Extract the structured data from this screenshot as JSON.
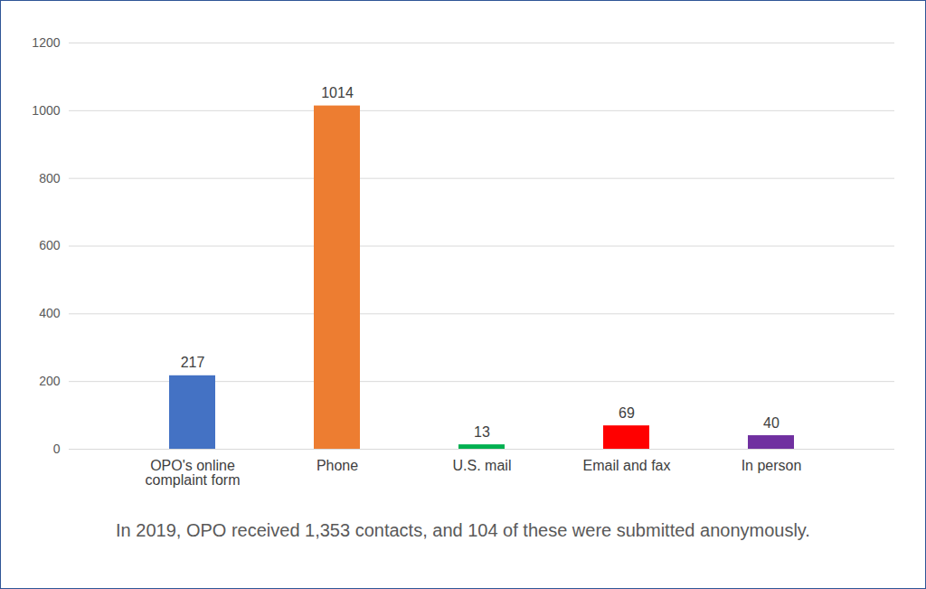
{
  "chart_data": {
    "type": "bar",
    "caption": "In 2019, OPO received 1,353 contacts, and 104 of these were submitted anonymously.",
    "categories": [
      "OPO's online complaint form",
      "Phone",
      "U.S. mail",
      "Email and fax",
      "In person"
    ],
    "values": [
      217,
      1014,
      13,
      69,
      40
    ],
    "colors": [
      "#4472c4",
      "#ed7d31",
      "#00b050",
      "#ff0000",
      "#7030a0"
    ],
    "ylim": [
      0,
      1200
    ],
    "yticks": [
      0,
      200,
      400,
      600,
      800,
      1000,
      1200
    ],
    "grid": true,
    "data_labels": true
  }
}
